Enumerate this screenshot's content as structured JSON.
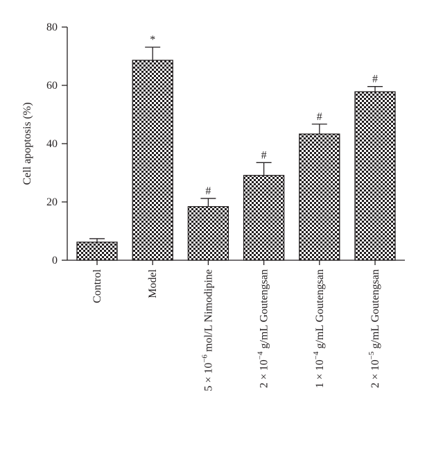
{
  "chart_data": {
    "type": "bar",
    "ylabel": "Cell apoptosis (%)",
    "ylim": [
      0,
      80
    ],
    "yticks": [
      0,
      20,
      40,
      60,
      80
    ],
    "grid": false,
    "categories": [
      {
        "prefix": "",
        "exp": "",
        "suffix": "Control"
      },
      {
        "prefix": "",
        "exp": "",
        "suffix": "Model"
      },
      {
        "prefix": "5 × 10",
        "exp": "−6",
        "suffix": " mol/L Nimodipine"
      },
      {
        "prefix": "2 × 10",
        "exp": "−4",
        "suffix": " g/mL Goutengsan"
      },
      {
        "prefix": "1 × 10",
        "exp": "−4",
        "suffix": " g/mL Goutengsan"
      },
      {
        "prefix": "2 × 10",
        "exp": "−5",
        "suffix": " g/mL Goutengsan"
      }
    ],
    "values": [
      6.2,
      68.6,
      18.4,
      29.1,
      43.3,
      57.8
    ],
    "errors": [
      1.2,
      4.5,
      2.8,
      4.4,
      3.4,
      1.8
    ],
    "annotations": [
      "",
      "*",
      "#",
      "#",
      "#",
      "#"
    ],
    "bar_pattern": "checkerboard",
    "colors": {
      "ink": "#231f20",
      "fill_light": "#ffffff"
    }
  }
}
